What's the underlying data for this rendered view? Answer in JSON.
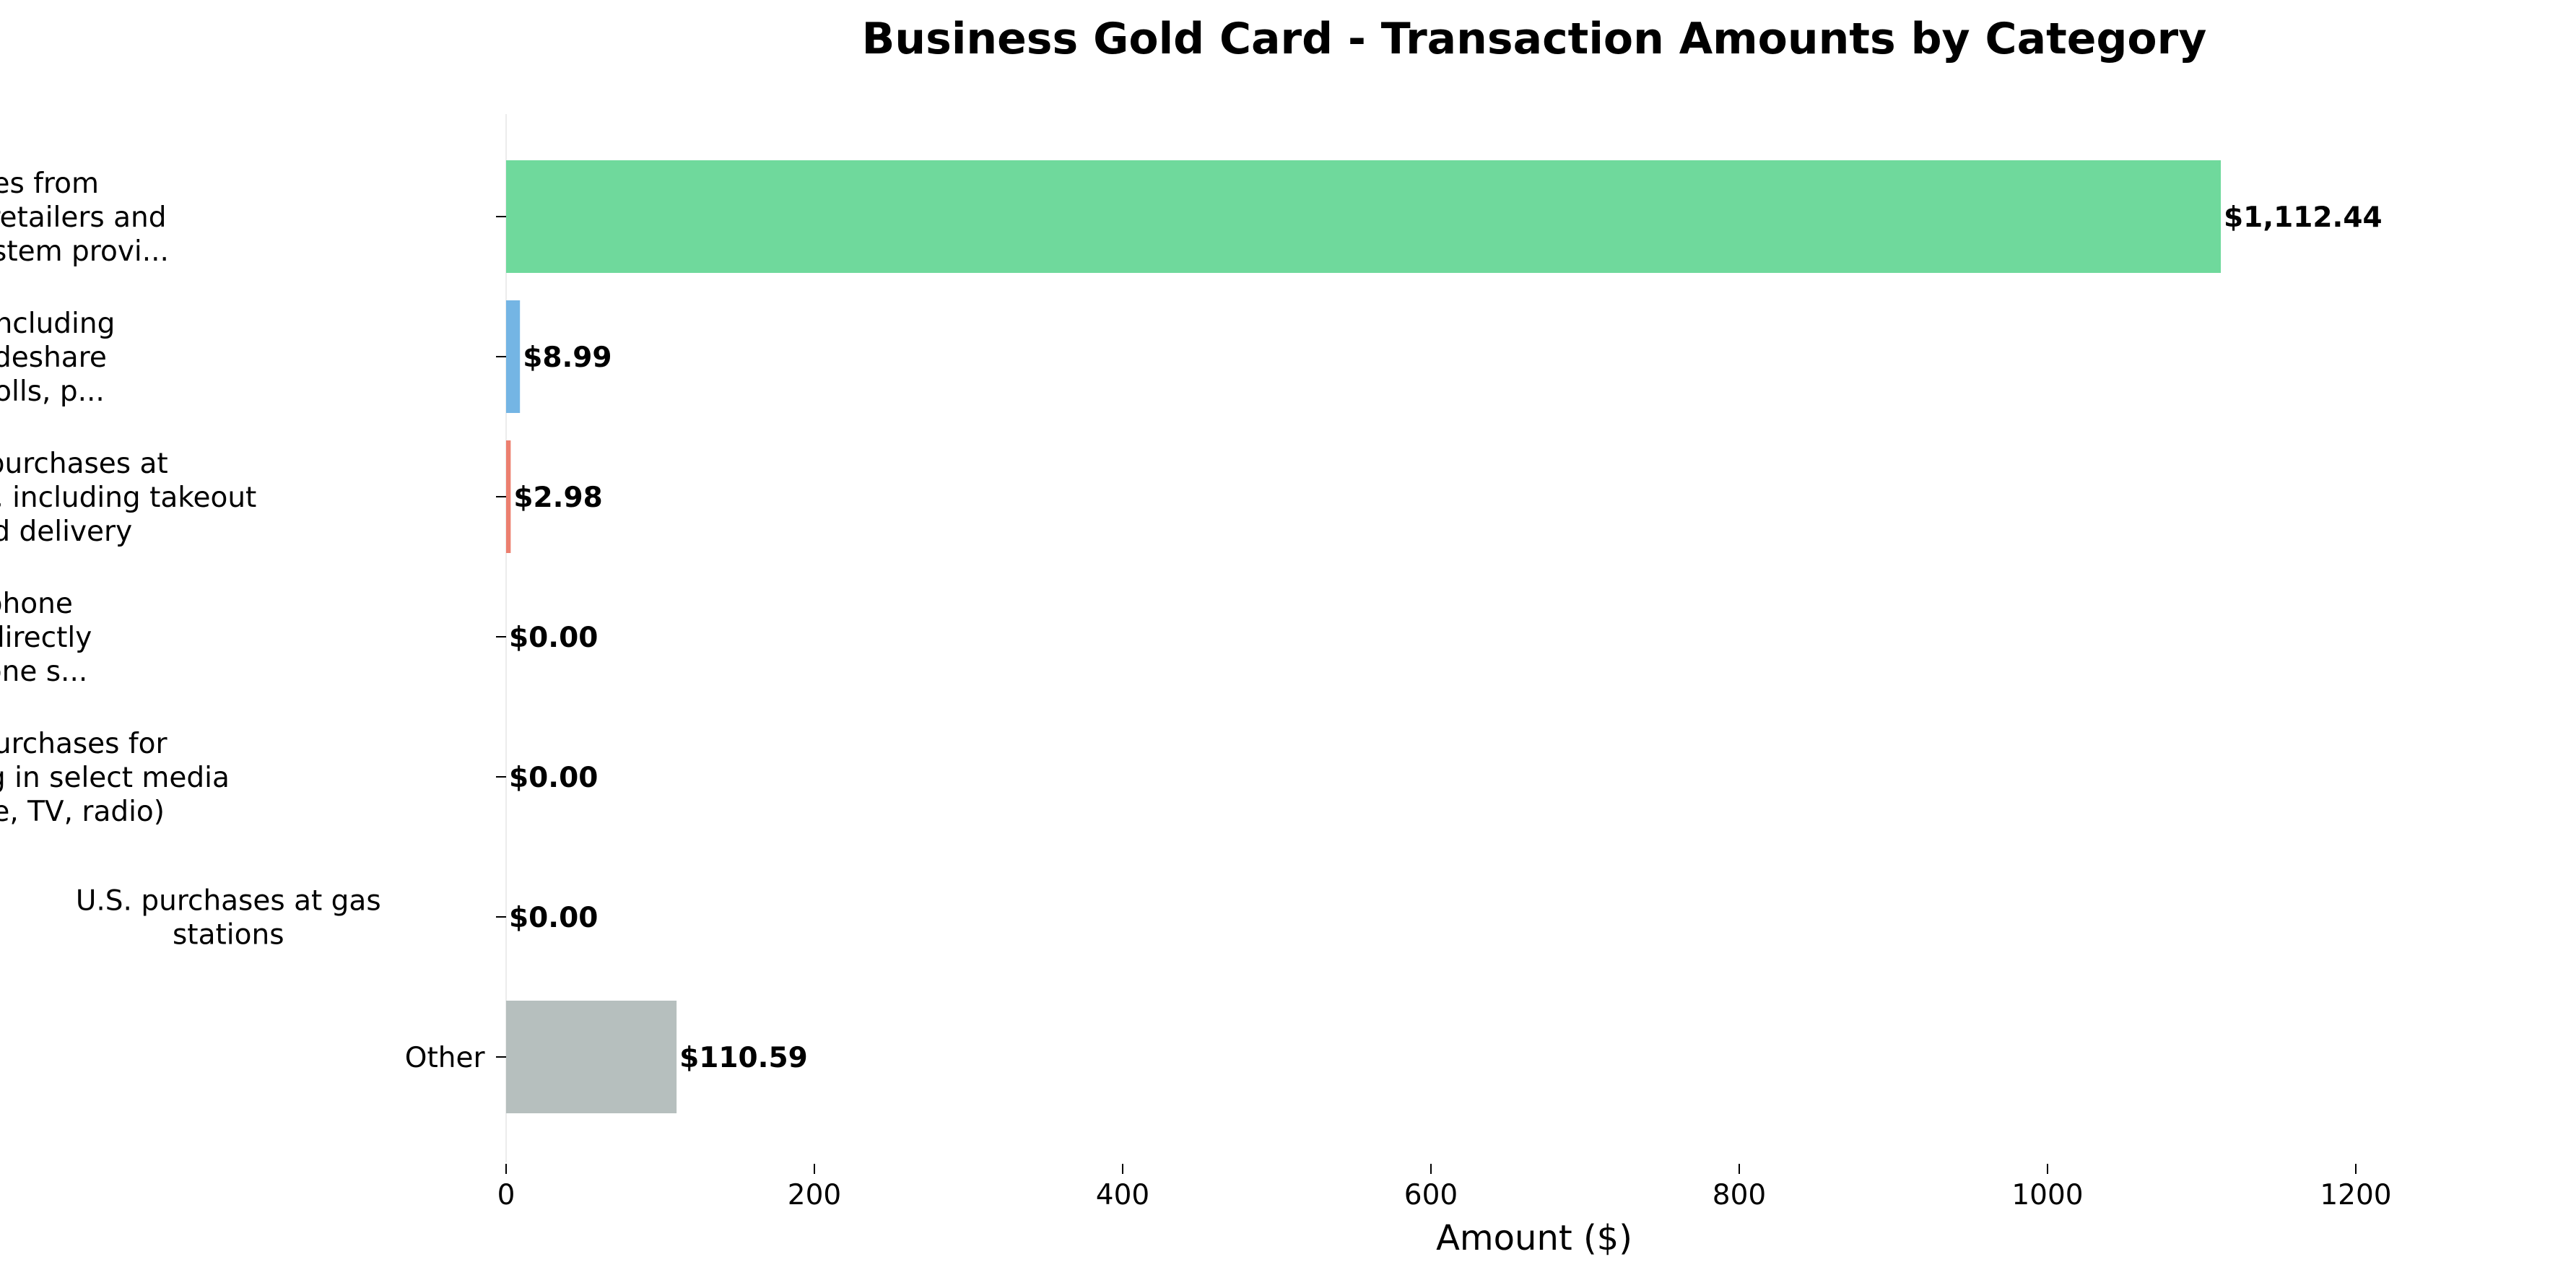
{
  "chart_data": {
    "type": "bar",
    "orientation": "horizontal",
    "title": "Business Gold Card - Transaction Amounts by Category",
    "xlabel": "Amount ($)",
    "ylabel": "",
    "xlim": [
      0,
      1300
    ],
    "xticks": [
      0,
      200,
      400,
      600,
      800,
      1000,
      1200
    ],
    "grid": false,
    "categories": [
      [
        "U.S. purchases from",
        "electronic goods retailers and",
        "software/cloud system provi..."
      ],
      [
        "Transit purchases including",
        "trains, taxicabs, rideshare",
        "services, ferries, tolls, p..."
      ],
      [
        "U.S. purchases at",
        "restaurants, including takeout",
        "and delivery"
      ],
      [
        "Monthly wireless telephone",
        "service charges made directly",
        "from a wireless telephone s..."
      ],
      [
        "U.S. purchases for",
        "advertising in select media",
        "(online, TV, radio)"
      ],
      [
        "U.S. purchases at gas",
        "stations"
      ],
      [
        "Other"
      ]
    ],
    "values": [
      1112.44,
      8.99,
      2.98,
      0.0,
      0.0,
      0.0,
      110.59
    ],
    "value_labels": [
      "$1,112.44",
      "$8.99",
      "$2.98",
      "$0.00",
      "$0.00",
      "$0.00",
      "$110.59"
    ],
    "colors": [
      "#6fd99c",
      "#74b5e4",
      "#ec7f6f",
      "#b8a3d9",
      "#f5c06c",
      "#85c1c5",
      "#b6bfbe"
    ]
  }
}
